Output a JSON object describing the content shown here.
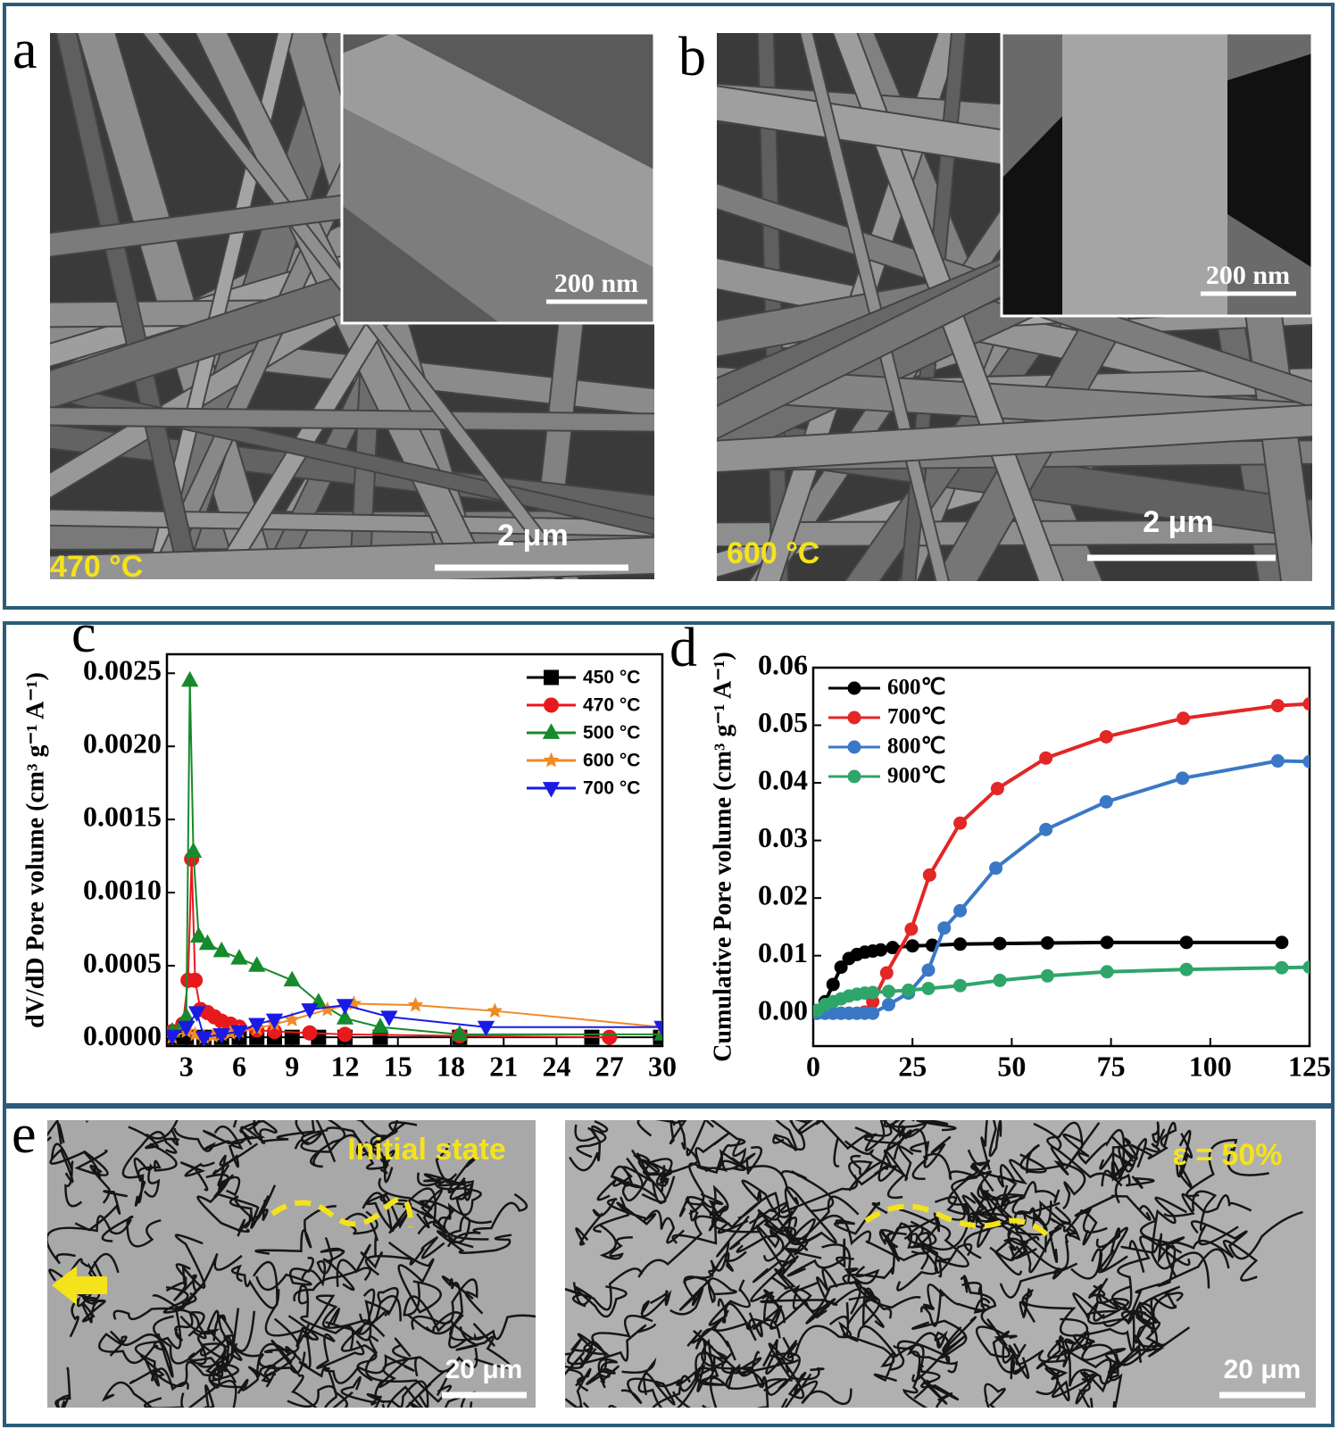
{
  "panel_a": {
    "label": "a",
    "temperature": "470 °C",
    "scale_bar": "2 μm",
    "inset_scale_bar": "200 nm"
  },
  "panel_b": {
    "label": "b",
    "temperature": "600 °C",
    "scale_bar": "2 μm",
    "inset_scale_bar": "200 nm"
  },
  "chart_data": [
    {
      "type": "line",
      "panel_label": "c",
      "y_label": "dV/dD Pore volume (cm³ g⁻¹ A⁻¹)",
      "xlim": [
        1.9,
        30
      ],
      "ylim": [
        -5e-05,
        0.00263
      ],
      "xticks": [
        3,
        6,
        9,
        12,
        15,
        18,
        21,
        24,
        27,
        30
      ],
      "yticks": [
        {
          "value": 0,
          "label": "0.0000"
        },
        {
          "value": 0.0005,
          "label": "0.0005"
        },
        {
          "value": 0.001,
          "label": "0.0010"
        },
        {
          "value": 0.0015,
          "label": "0.0015"
        },
        {
          "value": 0.002,
          "label": "0.0020"
        },
        {
          "value": 0.0025,
          "label": "0.0025"
        }
      ],
      "legend": "upper right",
      "series": [
        {
          "name": "450 °C",
          "color": "#000000",
          "marker": "square",
          "x": [
            2.2,
            3,
            4,
            5,
            6,
            7,
            8,
            9,
            10.5,
            12,
            14,
            18.5,
            26,
            29.9
          ],
          "values": [
            1e-05,
            1e-05,
            1e-05,
            1e-05,
            1e-05,
            1e-05,
            1e-05,
            1e-05,
            1e-05,
            1e-05,
            1e-05,
            1e-05,
            1e-05,
            1e-05
          ]
        },
        {
          "name": "470 °C",
          "color": "#e8191c",
          "marker": "circle",
          "x": [
            2.2,
            2.8,
            3.1,
            3.3,
            3.5,
            3.8,
            4.2,
            4.6,
            5,
            5.5,
            6,
            7,
            8,
            10,
            12,
            18.5,
            27
          ],
          "values": [
            5e-05,
            0.0001,
            0.0004,
            0.00123,
            0.0004,
            0.0002,
            0.00018,
            0.00015,
            0.00012,
            0.0001,
            8e-05,
            6e-05,
            5e-05,
            4e-05,
            3e-05,
            2e-05,
            1e-05
          ]
        },
        {
          "name": "500 °C",
          "color": "#168a2c",
          "marker": "triangle",
          "x": [
            2.2,
            2.8,
            3.0,
            3.2,
            3.4,
            3.7,
            4.2,
            5,
            6,
            7,
            9,
            10.5,
            12,
            14,
            18.5,
            30
          ],
          "values": [
            5e-05,
            0.0001,
            0.00015,
            0.00245,
            0.00128,
            0.0007,
            0.00065,
            0.0006,
            0.00055,
            0.0005,
            0.0004,
            0.00025,
            0.00014,
            8e-05,
            3e-05,
            3e-05
          ]
        },
        {
          "name": "600 °C",
          "color": "#f08a24",
          "marker": "star",
          "x": [
            2.2,
            3,
            3.5,
            4,
            4.5,
            5,
            5.5,
            6,
            7,
            8,
            9,
            11,
            12.5,
            16,
            20.5,
            30
          ],
          "values": [
            1e-05,
            5e-05,
            3e-05,
            1e-05,
            2e-05,
            3e-05,
            4e-05,
            5e-05,
            7e-05,
            0.0001,
            0.00013,
            0.0002,
            0.00024,
            0.00023,
            0.00019,
            8e-05
          ]
        },
        {
          "name": "700 °C",
          "color": "#1a1ae6",
          "marker": "triangle-down",
          "x": [
            2.2,
            3,
            3.6,
            4,
            5,
            6,
            7,
            8,
            10,
            12,
            14.5,
            20,
            30
          ],
          "values": [
            2e-05,
            8e-05,
            0.00018,
            1e-05,
            3e-05,
            5e-05,
            0.0001,
            0.00013,
            0.0002,
            0.00023,
            0.00015,
            8e-05,
            8e-05
          ]
        }
      ]
    },
    {
      "type": "line",
      "panel_label": "d",
      "y_label": "Cumulative Pore volume (cm³ g⁻¹ A⁻¹)",
      "xlim": [
        0,
        125
      ],
      "ylim": [
        -0.0057,
        0.06
      ],
      "xticks": [
        0,
        25,
        50,
        75,
        100,
        125
      ],
      "yticks": [
        {
          "value": 0,
          "label": "0.00"
        },
        {
          "value": 0.01,
          "label": "0.01"
        },
        {
          "value": 0.02,
          "label": "0.02"
        },
        {
          "value": 0.03,
          "label": "0.03"
        },
        {
          "value": 0.04,
          "label": "0.04"
        },
        {
          "value": 0.05,
          "label": "0.05"
        },
        {
          "value": 0.06,
          "label": "0.06"
        }
      ],
      "legend": "upper left",
      "series": [
        {
          "name": "600℃",
          "color": "#000000",
          "marker": "circle",
          "x": [
            1,
            3,
            5,
            7,
            9,
            11,
            13,
            15,
            17,
            20,
            25,
            30,
            37,
            47,
            59,
            74,
            94,
            118
          ],
          "values": [
            0.0005,
            0.002,
            0.005,
            0.008,
            0.0095,
            0.0102,
            0.0106,
            0.0108,
            0.011,
            0.0114,
            0.0117,
            0.0118,
            0.012,
            0.0121,
            0.0122,
            0.0123,
            0.0123,
            0.0123
          ]
        },
        {
          "name": "700℃",
          "color": "#e32626",
          "marker": "circle",
          "x": [
            1,
            3,
            5,
            7,
            9,
            11,
            13,
            15,
            18.5,
            24.7,
            29.3,
            37,
            46.4,
            58.6,
            73.8,
            93.2,
            117,
            125
          ],
          "values": [
            0,
            0,
            0,
            0,
            0,
            0,
            0.0002,
            0.002,
            0.007,
            0.0146,
            0.024,
            0.033,
            0.039,
            0.0443,
            0.048,
            0.0512,
            0.0534,
            0.0537
          ]
        },
        {
          "name": "800℃",
          "color": "#3a78c6",
          "marker": "circle",
          "x": [
            1,
            3,
            5,
            7,
            9,
            11,
            13,
            15,
            19,
            24,
            29,
            33,
            37,
            46,
            58.6,
            73.8,
            93,
            117,
            125
          ],
          "values": [
            0,
            0,
            0,
            0,
            0,
            0,
            0,
            0,
            0.0015,
            0.0035,
            0.0075,
            0.0148,
            0.0178,
            0.0252,
            0.0319,
            0.0367,
            0.0408,
            0.0438,
            0.0437
          ]
        },
        {
          "name": "900℃",
          "color": "#2ea66a",
          "marker": "circle",
          "x": [
            1,
            3,
            5,
            7,
            9,
            11,
            13,
            15,
            19,
            24,
            29,
            37,
            47,
            59,
            74,
            94,
            118,
            125
          ],
          "values": [
            0.0005,
            0.0015,
            0.002,
            0.0025,
            0.003,
            0.0033,
            0.0035,
            0.0036,
            0.0038,
            0.004,
            0.0043,
            0.0048,
            0.0057,
            0.0065,
            0.0072,
            0.0076,
            0.0079,
            0.008
          ]
        }
      ]
    }
  ],
  "panel_e": {
    "label": "e",
    "left_state": "Initial state",
    "right_state": "ε = 50%",
    "left_scale_bar": "20 μm",
    "right_scale_bar": "20 μm"
  }
}
